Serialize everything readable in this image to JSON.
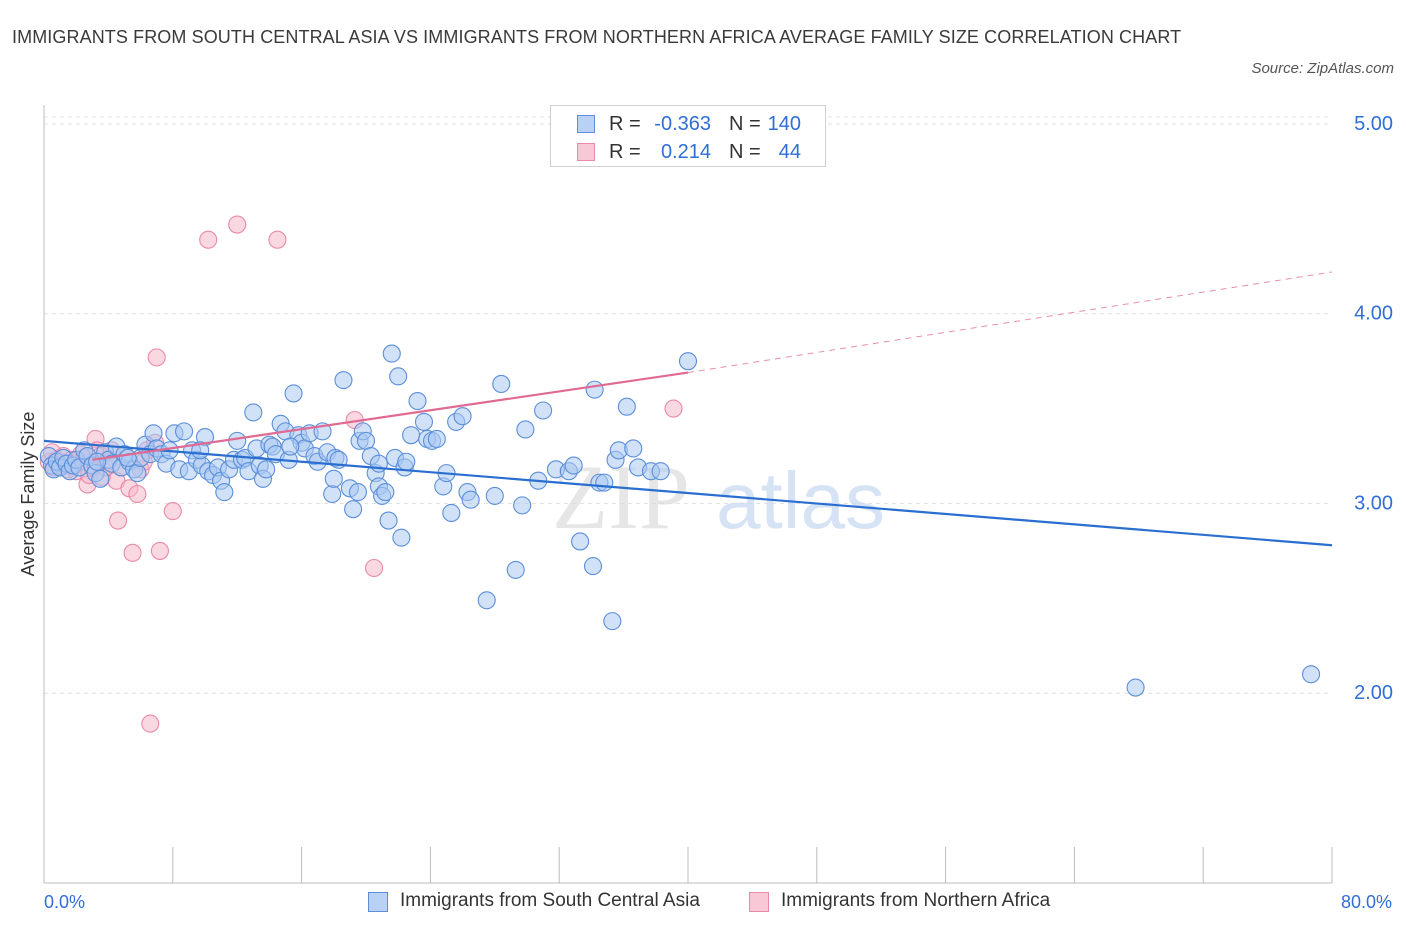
{
  "title": "IMMIGRANTS FROM SOUTH CENTRAL ASIA VS IMMIGRANTS FROM NORTHERN AFRICA AVERAGE FAMILY SIZE CORRELATION CHART",
  "source": "Source: ZipAtlas.com",
  "watermark": {
    "zip": "ZIP",
    "atlas": "atlas"
  },
  "legend_top": [
    {
      "r_label": "R =",
      "r_value": "-0.363",
      "n_label": "N =",
      "n_value": "140"
    },
    {
      "r_label": "R =",
      "r_value": "0.214",
      "n_label": "N =",
      "n_value": "44"
    }
  ],
  "legend_bottom": [
    "Immigrants from South Central Asia",
    "Immigrants from Northern Africa"
  ],
  "colors": {
    "blue_fill": "#a9c8f3",
    "blue_stroke": "#5b8fd9",
    "blue_line": "#2a6fd0",
    "pink_fill": "#f6b8cb",
    "pink_stroke": "#e88aa8",
    "pink_line": "#e06a92",
    "axis_text": "#2f6fd6",
    "grid": "#e2e2e2"
  },
  "chart_data": {
    "type": "scatter",
    "xlabel": "",
    "ylabel": "Average Family Size",
    "xlim": [
      0,
      80
    ],
    "ylim": [
      1.0,
      5.1
    ],
    "x_tick_labels": [
      "0.0%",
      "80.0%"
    ],
    "y_ticks": [
      2.0,
      3.0,
      4.0,
      5.0
    ],
    "y_tick_labels": [
      "2.00",
      "3.00",
      "4.00",
      "5.00"
    ],
    "grid": true,
    "legend_position": "top-center",
    "series": [
      {
        "name": "Immigrants from South Central Asia",
        "color": "blue",
        "trend": {
          "x": [
            0,
            80
          ],
          "y": [
            3.33,
            2.78
          ]
        },
        "points": [
          [
            0.3,
            3.25
          ],
          [
            0.5,
            3.2
          ],
          [
            0.6,
            3.18
          ],
          [
            0.8,
            3.22
          ],
          [
            1.0,
            3.19
          ],
          [
            1.2,
            3.24
          ],
          [
            1.4,
            3.21
          ],
          [
            1.6,
            3.17
          ],
          [
            1.8,
            3.2
          ],
          [
            2.0,
            3.23
          ],
          [
            2.2,
            3.19
          ],
          [
            2.5,
            3.28
          ],
          [
            2.7,
            3.25
          ],
          [
            3.0,
            3.2
          ],
          [
            3.2,
            3.16
          ],
          [
            3.5,
            3.13
          ],
          [
            3.8,
            3.27
          ],
          [
            4.0,
            3.23
          ],
          [
            4.2,
            3.21
          ],
          [
            4.5,
            3.3
          ],
          [
            4.8,
            3.19
          ],
          [
            5.0,
            3.26
          ],
          [
            5.3,
            3.22
          ],
          [
            5.6,
            3.18
          ],
          [
            5.8,
            3.16
          ],
          [
            6.0,
            3.24
          ],
          [
            6.3,
            3.31
          ],
          [
            6.6,
            3.26
          ],
          [
            6.8,
            3.37
          ],
          [
            7.0,
            3.29
          ],
          [
            7.3,
            3.26
          ],
          [
            7.6,
            3.21
          ],
          [
            7.8,
            3.28
          ],
          [
            8.1,
            3.37
          ],
          [
            8.4,
            3.18
          ],
          [
            8.7,
            3.38
          ],
          [
            9.0,
            3.17
          ],
          [
            9.2,
            3.28
          ],
          [
            9.5,
            3.23
          ],
          [
            9.8,
            3.2
          ],
          [
            10.0,
            3.35
          ],
          [
            10.2,
            3.17
          ],
          [
            10.5,
            3.15
          ],
          [
            10.8,
            3.19
          ],
          [
            11.0,
            3.12
          ],
          [
            11.2,
            3.06
          ],
          [
            11.5,
            3.18
          ],
          [
            11.8,
            3.23
          ],
          [
            12.0,
            3.33
          ],
          [
            12.3,
            3.23
          ],
          [
            12.5,
            3.24
          ],
          [
            12.7,
            3.17
          ],
          [
            13.0,
            3.48
          ],
          [
            13.2,
            3.29
          ],
          [
            13.4,
            3.2
          ],
          [
            13.6,
            3.13
          ],
          [
            13.8,
            3.18
          ],
          [
            14.0,
            3.31
          ],
          [
            14.2,
            3.3
          ],
          [
            14.4,
            3.26
          ],
          [
            14.7,
            3.42
          ],
          [
            15.0,
            3.38
          ],
          [
            15.2,
            3.23
          ],
          [
            15.5,
            3.58
          ],
          [
            15.8,
            3.36
          ],
          [
            16.0,
            3.32
          ],
          [
            16.2,
            3.29
          ],
          [
            16.5,
            3.37
          ],
          [
            16.8,
            3.25
          ],
          [
            17.0,
            3.22
          ],
          [
            17.3,
            3.38
          ],
          [
            17.6,
            3.27
          ],
          [
            17.9,
            3.05
          ],
          [
            18.0,
            3.13
          ],
          [
            18.1,
            3.24
          ],
          [
            18.3,
            3.23
          ],
          [
            18.6,
            3.65
          ],
          [
            19.0,
            3.08
          ],
          [
            19.2,
            2.97
          ],
          [
            19.5,
            3.06
          ],
          [
            19.6,
            3.33
          ],
          [
            19.8,
            3.38
          ],
          [
            20.0,
            3.33
          ],
          [
            20.3,
            3.25
          ],
          [
            20.6,
            3.16
          ],
          [
            20.8,
            3.21
          ],
          [
            20.8,
            3.09
          ],
          [
            21.0,
            3.04
          ],
          [
            21.2,
            3.06
          ],
          [
            21.4,
            2.91
          ],
          [
            21.6,
            3.79
          ],
          [
            21.8,
            3.24
          ],
          [
            22.0,
            3.67
          ],
          [
            22.2,
            2.82
          ],
          [
            22.4,
            3.19
          ],
          [
            22.8,
            3.36
          ],
          [
            23.2,
            3.54
          ],
          [
            23.6,
            3.43
          ],
          [
            23.8,
            3.34
          ],
          [
            24.1,
            3.33
          ],
          [
            24.4,
            3.34
          ],
          [
            24.8,
            3.09
          ],
          [
            25.0,
            3.16
          ],
          [
            25.3,
            2.95
          ],
          [
            25.6,
            3.43
          ],
          [
            26.0,
            3.46
          ],
          [
            26.3,
            3.06
          ],
          [
            26.5,
            3.02
          ],
          [
            27.5,
            2.49
          ],
          [
            28.0,
            3.04
          ],
          [
            28.4,
            3.63
          ],
          [
            29.3,
            2.65
          ],
          [
            29.7,
            2.99
          ],
          [
            29.9,
            3.39
          ],
          [
            30.7,
            3.12
          ],
          [
            31.0,
            3.49
          ],
          [
            31.8,
            3.18
          ],
          [
            32.6,
            3.17
          ],
          [
            32.9,
            3.2
          ],
          [
            33.3,
            2.8
          ],
          [
            34.1,
            2.67
          ],
          [
            34.2,
            3.6
          ],
          [
            34.5,
            3.11
          ],
          [
            34.8,
            3.11
          ],
          [
            35.3,
            2.38
          ],
          [
            35.5,
            3.23
          ],
          [
            35.7,
            3.28
          ],
          [
            36.2,
            3.51
          ],
          [
            36.6,
            3.29
          ],
          [
            36.9,
            3.19
          ],
          [
            37.7,
            3.17
          ],
          [
            38.3,
            3.17
          ],
          [
            40.0,
            3.75
          ],
          [
            67.8,
            2.03
          ],
          [
            78.7,
            2.1
          ],
          [
            3.3,
            3.22
          ],
          [
            5.2,
            3.24
          ],
          [
            9.7,
            3.28
          ],
          [
            15.3,
            3.3
          ],
          [
            22.5,
            3.22
          ]
        ]
      },
      {
        "name": "Immigrants from Northern Africa",
        "color": "pink",
        "trend": {
          "x": [
            3,
            40
          ],
          "y": [
            3.23,
            3.69
          ],
          "dashed_extension": {
            "x": [
              40,
              80
            ],
            "y": [
              3.69,
              4.22
            ]
          }
        },
        "points": [
          [
            0.3,
            3.22
          ],
          [
            0.5,
            3.27
          ],
          [
            0.6,
            3.19
          ],
          [
            0.8,
            3.23
          ],
          [
            1.0,
            3.2
          ],
          [
            1.2,
            3.25
          ],
          [
            1.3,
            3.21
          ],
          [
            1.5,
            3.18
          ],
          [
            1.7,
            3.23
          ],
          [
            1.9,
            3.2
          ],
          [
            2.0,
            3.17
          ],
          [
            2.2,
            3.22
          ],
          [
            2.3,
            3.26
          ],
          [
            2.5,
            3.24
          ],
          [
            2.7,
            3.1
          ],
          [
            2.8,
            3.15
          ],
          [
            3.0,
            3.19
          ],
          [
            3.2,
            3.34
          ],
          [
            3.3,
            3.28
          ],
          [
            3.5,
            3.25
          ],
          [
            3.6,
            3.14
          ],
          [
            3.8,
            3.19
          ],
          [
            4.0,
            3.22
          ],
          [
            4.2,
            3.28
          ],
          [
            4.5,
            3.12
          ],
          [
            4.6,
            2.91
          ],
          [
            4.8,
            3.19
          ],
          [
            5.3,
            3.08
          ],
          [
            5.5,
            2.74
          ],
          [
            5.8,
            3.05
          ],
          [
            6.0,
            3.18
          ],
          [
            6.2,
            3.22
          ],
          [
            6.4,
            3.28
          ],
          [
            6.6,
            1.84
          ],
          [
            6.9,
            3.32
          ],
          [
            7.0,
            3.77
          ],
          [
            7.2,
            2.75
          ],
          [
            8.0,
            2.96
          ],
          [
            10.2,
            4.39
          ],
          [
            12.0,
            4.47
          ],
          [
            14.5,
            4.39
          ],
          [
            19.3,
            3.44
          ],
          [
            20.5,
            2.66
          ],
          [
            39.1,
            3.5
          ]
        ]
      }
    ]
  }
}
